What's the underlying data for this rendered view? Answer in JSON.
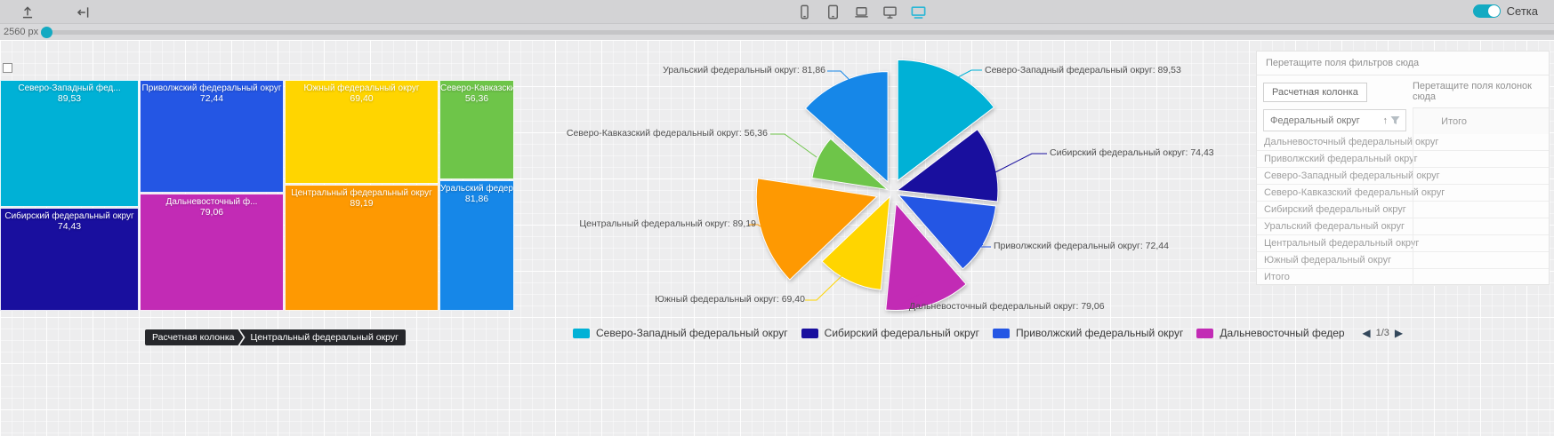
{
  "toolbar": {
    "width_label": "2560 px",
    "grid_toggle_label": "Сетка",
    "accent_color": "#14aac2",
    "action_icons": [
      "upload-icon",
      "collapse-left-icon"
    ],
    "devices": [
      {
        "name": "phone",
        "active": false
      },
      {
        "name": "tablet",
        "active": false
      },
      {
        "name": "laptop",
        "active": false
      },
      {
        "name": "desktop",
        "active": false
      },
      {
        "name": "tv",
        "active": true
      }
    ]
  },
  "treemap": {
    "tooltip": {
      "field": "Расчетная колонка",
      "value": "Центральный федеральный округ"
    },
    "cells": [
      {
        "name": "Северо-Западный фед...",
        "value": "89,53",
        "color": "#00b1d6"
      },
      {
        "name": "Приволжский федеральный округ",
        "value": "72,44",
        "color": "#2456e4"
      },
      {
        "name": "Южный федеральный округ",
        "value": "69,40",
        "color": "#ffd500"
      },
      {
        "name": "Северо-Кавказски...",
        "value": "56,36",
        "color": "#6ec549"
      },
      {
        "name": "Сибирский федеральный округ",
        "value": "74,43",
        "color": "#190f9e"
      },
      {
        "name": "Дальневосточный ф...",
        "value": "79,06",
        "color": "#c22bb5"
      },
      {
        "name": "Центральный федеральный округ",
        "value": "89,19",
        "color": "#fe9902"
      },
      {
        "name": "Уральский федеральный округ",
        "value": "81,86",
        "color": "#1687e8"
      }
    ]
  },
  "chart_data": [
    {
      "type": "treemap",
      "title": "",
      "series": [
        {
          "name": "Северо-Западный федеральный округ",
          "value": 89.53
        },
        {
          "name": "Приволжский федеральный округ",
          "value": 72.44
        },
        {
          "name": "Южный федеральный округ",
          "value": 69.4
        },
        {
          "name": "Северо-Кавказский федеральный округ",
          "value": 56.36
        },
        {
          "name": "Сибирский федеральный округ",
          "value": 74.43
        },
        {
          "name": "Дальневосточный федеральный округ",
          "value": 79.06
        },
        {
          "name": "Центральный федеральный округ",
          "value": 89.19
        },
        {
          "name": "Уральский федеральный округ",
          "value": 81.86
        }
      ]
    },
    {
      "type": "pie",
      "title": "",
      "legend_position": "bottom",
      "series": [
        {
          "name": "Северо-Западный федеральный округ",
          "value": 89.53,
          "color": "#00b1d6",
          "label": "Северо-Западный федеральный округ: 89,53"
        },
        {
          "name": "Сибирский федеральный округ",
          "value": 74.43,
          "color": "#190f9e",
          "label": "Сибирский федеральный округ: 74,43"
        },
        {
          "name": "Приволжский федеральный округ",
          "value": 72.44,
          "color": "#2456e4",
          "label": "Приволжский федеральный округ: 72,44"
        },
        {
          "name": "Дальневосточный федеральный округ",
          "value": 79.06,
          "color": "#c22bb5",
          "label": "Дальневосточный федеральный округ: 79,06"
        },
        {
          "name": "Южный федеральный округ",
          "value": 69.4,
          "color": "#ffd500",
          "label": "Южный федеральный округ: 69,40"
        },
        {
          "name": "Центральный федеральный округ",
          "value": 89.19,
          "color": "#fe9902",
          "label": "Центральный федеральный округ: 89,19"
        },
        {
          "name": "Северо-Кавказский федеральный округ",
          "value": 56.36,
          "color": "#6ec549",
          "label": "Северо-Кавказский федеральный округ: 56,36"
        },
        {
          "name": "Уральский федеральный округ",
          "value": 81.86,
          "color": "#1687e8",
          "label": "Уральский федеральный округ: 81,86"
        }
      ]
    }
  ],
  "legend": {
    "items": [
      {
        "label": "Северо-Западный федеральный округ",
        "color": "#00b1d6"
      },
      {
        "label": "Сибирский федеральный округ",
        "color": "#190f9e"
      },
      {
        "label": "Приволжский федеральный округ",
        "color": "#2456e4"
      },
      {
        "label": "Дальневосточный федеральный округ",
        "color": "#c22bb5"
      }
    ],
    "page": "1/3"
  },
  "panel": {
    "filters_placeholder": "Перетащите поля фильтров сюда",
    "measure_chip": "Расчетная колонка",
    "columns_placeholder": "Перетащите поля колонок сюда",
    "row_field": "Федеральный округ",
    "sort_icon": "↑",
    "total_header": "Итого",
    "rows": [
      "Дальневосточный федеральный округ",
      "Приволжский федеральный округ",
      "Северо-Западный федеральный округ",
      "Северо-Кавказский федеральный округ",
      "Сибирский федеральный округ",
      "Уральский федеральный округ",
      "Центральный федеральный округ",
      "Южный федеральный округ",
      "Итого"
    ]
  }
}
